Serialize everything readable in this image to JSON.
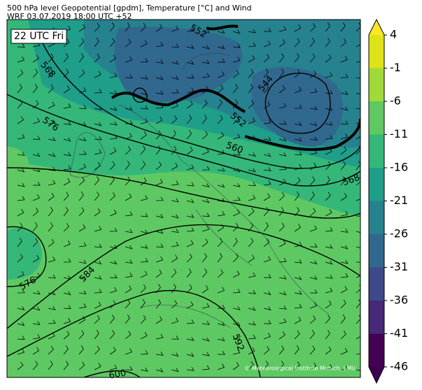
{
  "header": {
    "title": "500 hPa level Geopotential [gpdm], Temperature [°C] and Wind",
    "subtitle": "WRF 03.07.2019 18:00 UTC +52"
  },
  "map": {
    "time_label": "22 UTC Fri",
    "credit": "© Meteorological Institute Munich, LMU",
    "contour_labels": [
      "552",
      "568",
      "576",
      "544",
      "552",
      "560",
      "568",
      "576",
      "584",
      "592",
      "600"
    ]
  },
  "colorbar": {
    "ticks": [
      4,
      -1,
      -6,
      -11,
      -16,
      -21,
      -26,
      -31,
      -36,
      -41,
      -46
    ],
    "colors": [
      "#fde725",
      "#dde318",
      "#a0da39",
      "#5ec962",
      "#35b779",
      "#1f9e89",
      "#26828e",
      "#31688e",
      "#3e4989",
      "#482878",
      "#440154",
      "#3b0050"
    ]
  }
}
